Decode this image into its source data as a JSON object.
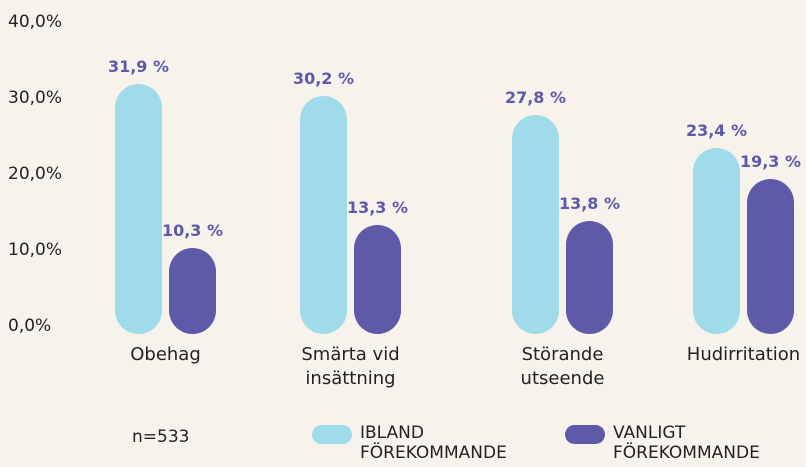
{
  "chart_data": {
    "type": "bar",
    "note": "n=533",
    "categories": [
      "Obehag",
      "Smärta vid insättning",
      "Störande utseende",
      "Hudirritation"
    ],
    "series": [
      {
        "name": "IBLAND FÖREKOMMANDE",
        "color": "#9fdbe8",
        "values": [
          31.9,
          30.2,
          27.8,
          23.4
        ],
        "value_labels": [
          "31,9 %",
          "30,2 %",
          "27,8 %",
          "23,4 %"
        ]
      },
      {
        "name": "VANLIGT FÖREKOMMANDE",
        "color": "#5f5aa8",
        "values": [
          10.3,
          13.3,
          13.8,
          19.3
        ],
        "value_labels": [
          "10,3 %",
          "13,3 %",
          "13,8 %",
          "19,3 %"
        ]
      }
    ],
    "ylim": [
      0,
      40
    ],
    "yticks": [
      {
        "value": 0,
        "label": "0,0%"
      },
      {
        "value": 10,
        "label": "10,0%"
      },
      {
        "value": 20,
        "label": "20,0%"
      },
      {
        "value": 30,
        "label": "30,0%"
      },
      {
        "value": 40,
        "label": "40,0%"
      }
    ],
    "grid": false
  }
}
